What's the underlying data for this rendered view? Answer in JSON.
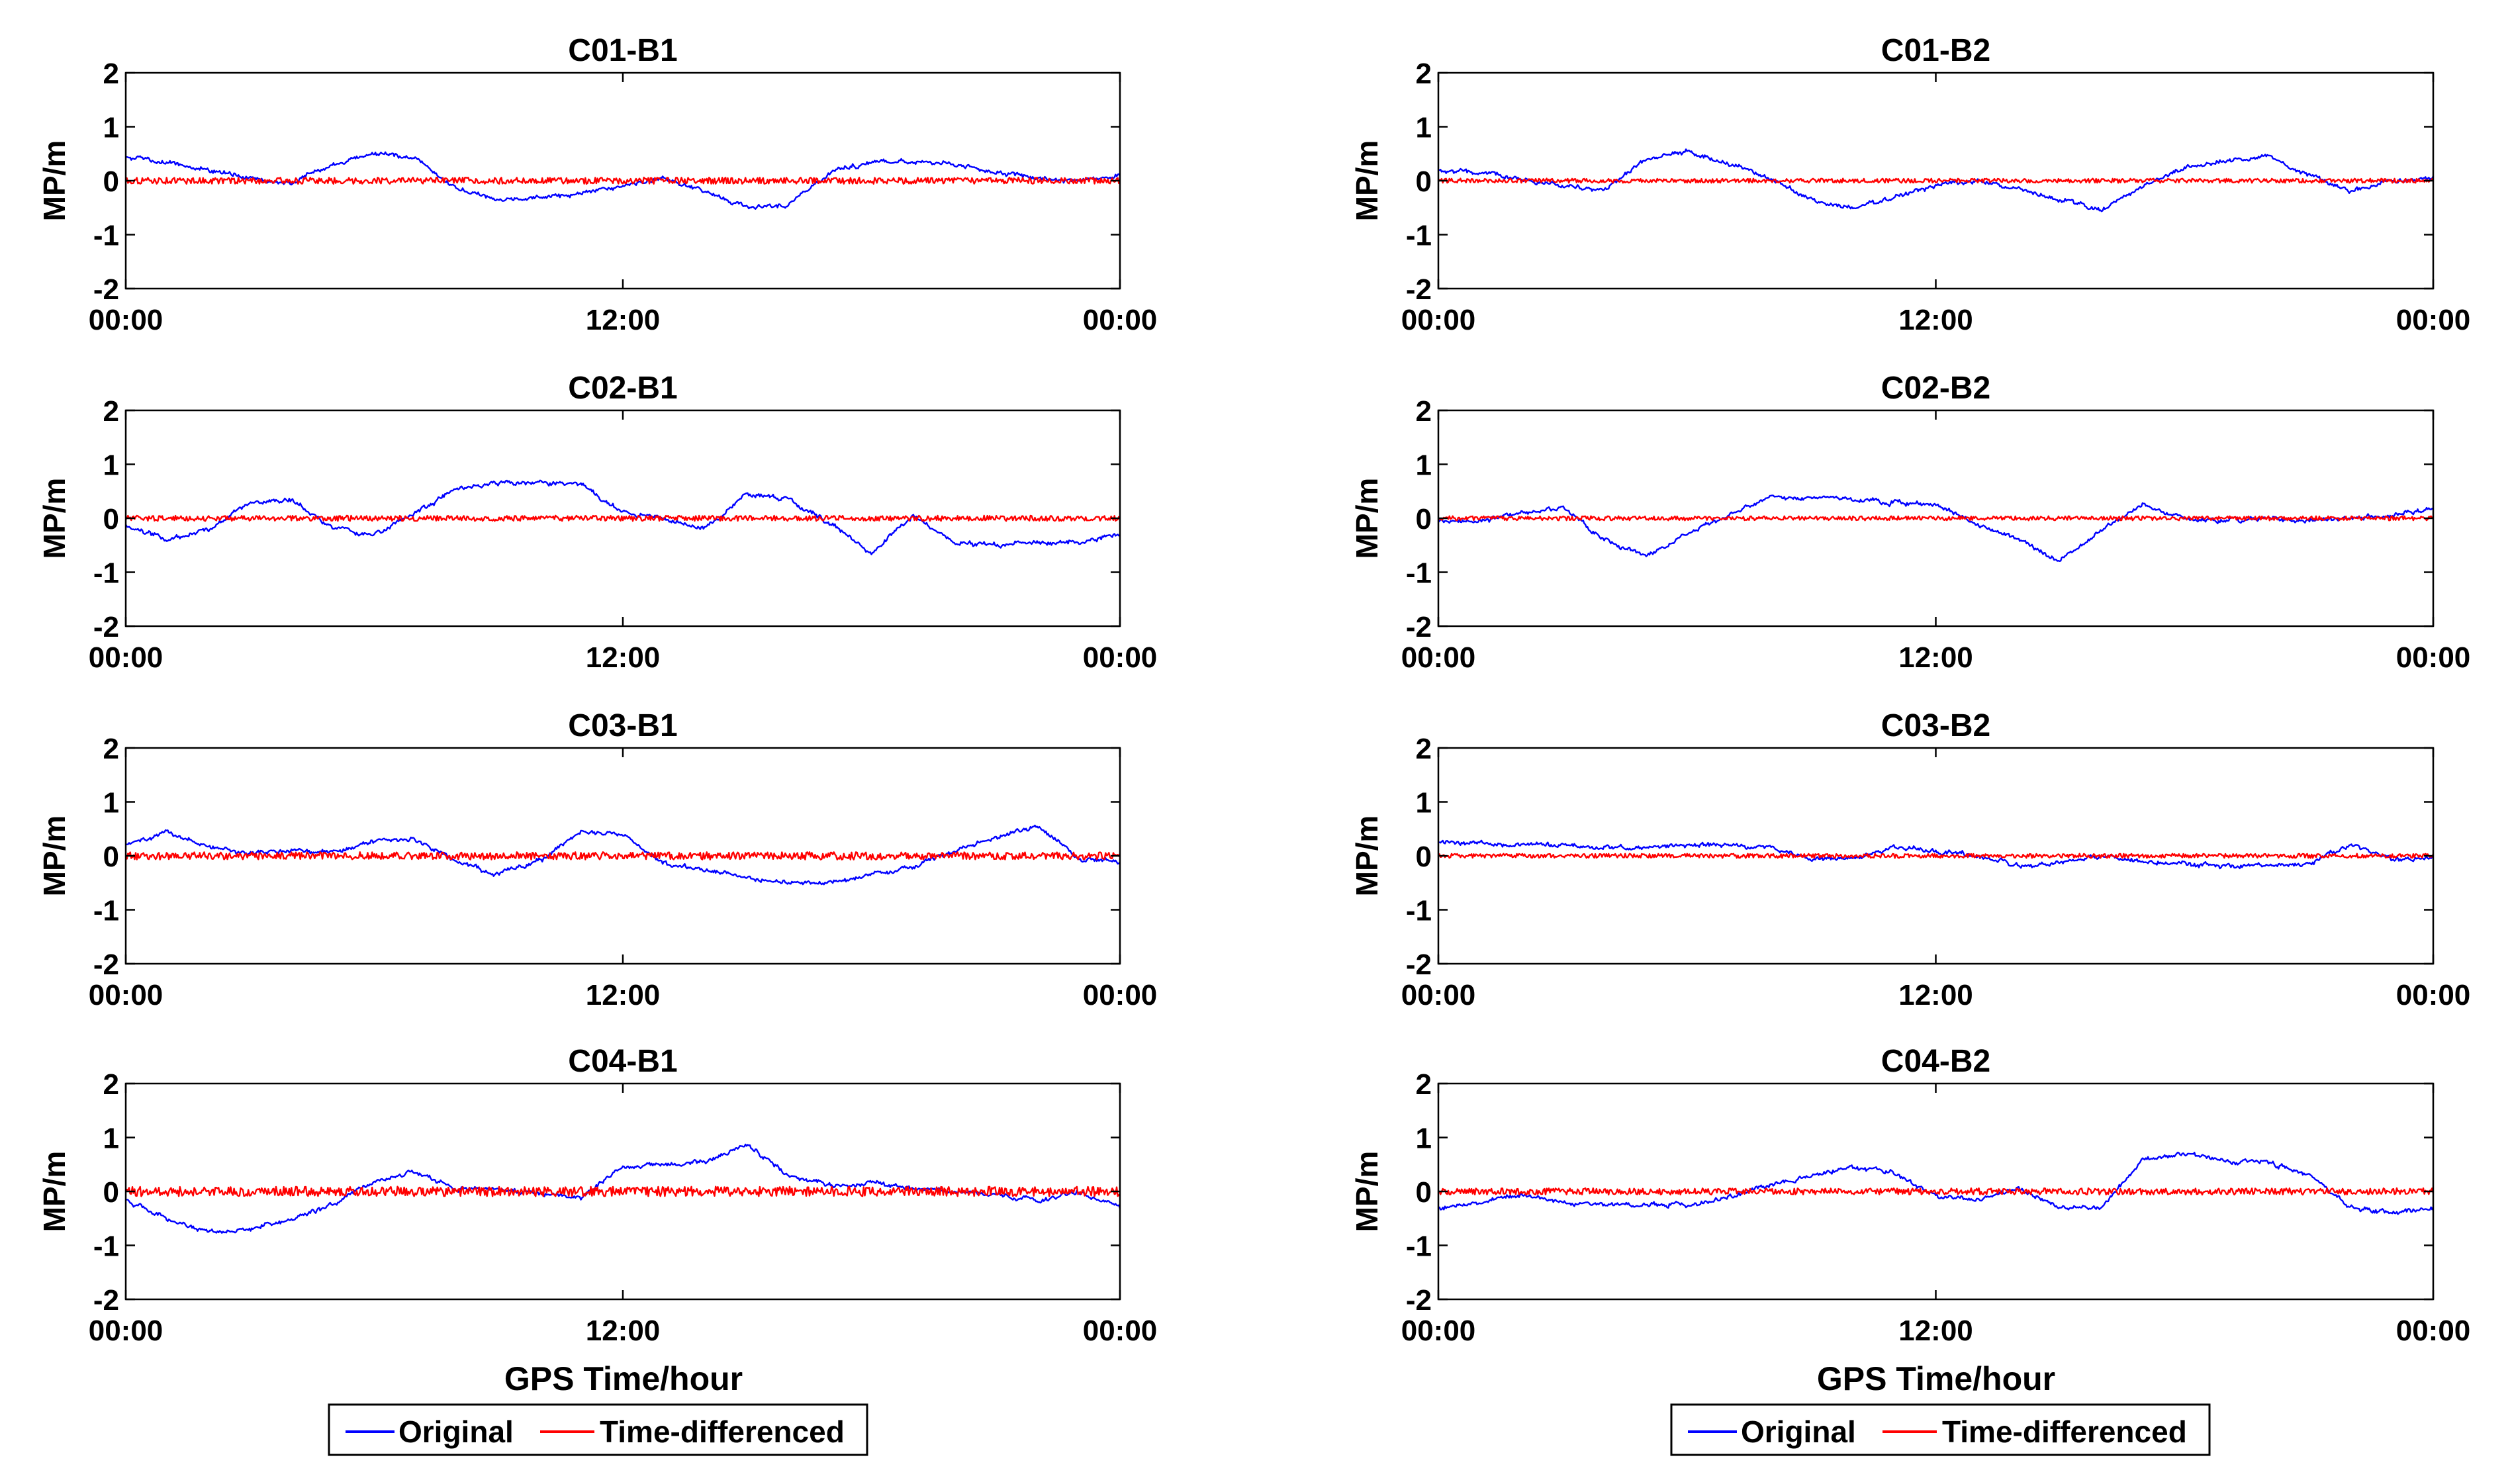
{
  "figure": {
    "shared_ylabel": "MP/m",
    "shared_xlabel": "GPS Time/hour",
    "x_ticks": [
      "00:00",
      "12:00",
      "00:00"
    ],
    "y_ticks": [
      "2",
      "1",
      "0",
      "-1",
      "-2"
    ],
    "legend": [
      "Original",
      "Time-differenced"
    ],
    "colors": {
      "Original": "#0000ff",
      "Time-differenced": "#ff0000"
    }
  },
  "chart_data": [
    {
      "type": "line",
      "title": "C01-B1",
      "xlabel": "",
      "ylabel": "MP/m",
      "xlim": [
        0,
        24
      ],
      "ylim": [
        -2,
        2
      ],
      "x_ticks": [
        "00:00",
        "12:00",
        "00:00"
      ],
      "series": [
        {
          "name": "Original",
          "color": "#0000ff",
          "x": [
            0,
            1,
            2,
            3,
            4,
            5,
            6,
            7,
            8,
            9,
            10,
            11,
            12,
            13,
            14,
            15,
            16,
            17,
            18,
            19,
            20,
            21,
            22,
            23,
            24
          ],
          "y": [
            0.45,
            0.35,
            0.2,
            0.05,
            -0.05,
            0.3,
            0.5,
            0.4,
            -0.15,
            -0.35,
            -0.3,
            -0.25,
            -0.1,
            0.05,
            -0.2,
            -0.5,
            -0.45,
            0.15,
            0.35,
            0.35,
            0.3,
            0.15,
            0.05,
            0.0,
            0.1
          ]
        },
        {
          "name": "Time-differenced",
          "color": "#ff0000",
          "x": [
            0,
            24
          ],
          "y": [
            0,
            0
          ],
          "noise": 0.06
        }
      ]
    },
    {
      "type": "line",
      "title": "C01-B2",
      "xlabel": "",
      "ylabel": "MP/m",
      "xlim": [
        0,
        24
      ],
      "ylim": [
        -2,
        2
      ],
      "x_ticks": [
        "00:00",
        "12:00",
        "00:00"
      ],
      "series": [
        {
          "name": "Original",
          "color": "#0000ff",
          "x": [
            0,
            1,
            2,
            3,
            4,
            5,
            6,
            7,
            8,
            9,
            10,
            11,
            12,
            13,
            14,
            15,
            16,
            17,
            18,
            19,
            20,
            21,
            22,
            23,
            24
          ],
          "y": [
            0.2,
            0.15,
            0.05,
            -0.1,
            -0.15,
            0.4,
            0.55,
            0.3,
            0.05,
            -0.35,
            -0.55,
            -0.3,
            -0.1,
            0.0,
            -0.15,
            -0.35,
            -0.55,
            -0.1,
            0.25,
            0.35,
            0.45,
            0.1,
            -0.2,
            0.0,
            0.05
          ]
        },
        {
          "name": "Time-differenced",
          "color": "#ff0000",
          "x": [
            0,
            24
          ],
          "y": [
            0,
            0
          ],
          "noise": 0.04
        }
      ]
    },
    {
      "type": "line",
      "title": "C02-B1",
      "xlabel": "",
      "ylabel": "MP/m",
      "xlim": [
        0,
        24
      ],
      "ylim": [
        -2,
        2
      ],
      "x_ticks": [
        "00:00",
        "12:00",
        "00:00"
      ],
      "series": [
        {
          "name": "Original",
          "color": "#0000ff",
          "x": [
            0,
            1,
            2,
            3,
            4,
            5,
            6,
            7,
            8,
            9,
            10,
            11,
            12,
            13,
            14,
            15,
            16,
            17,
            18,
            19,
            20,
            21,
            22,
            23,
            24
          ],
          "y": [
            -0.1,
            -0.4,
            -0.2,
            0.3,
            0.35,
            -0.2,
            -0.3,
            0.1,
            0.55,
            0.65,
            0.65,
            0.65,
            0.1,
            0.0,
            -0.2,
            0.45,
            0.35,
            -0.1,
            -0.65,
            0.05,
            -0.45,
            -0.5,
            -0.45,
            -0.45,
            -0.3
          ]
        },
        {
          "name": "Time-differenced",
          "color": "#ff0000",
          "x": [
            0,
            24
          ],
          "y": [
            0,
            0
          ],
          "noise": 0.05
        }
      ]
    },
    {
      "type": "line",
      "title": "C02-B2",
      "xlabel": "",
      "ylabel": "MP/m",
      "xlim": [
        0,
        24
      ],
      "ylim": [
        -2,
        2
      ],
      "x_ticks": [
        "00:00",
        "12:00",
        "00:00"
      ],
      "series": [
        {
          "name": "Original",
          "color": "#0000ff",
          "x": [
            0,
            1,
            2,
            3,
            4,
            5,
            6,
            7,
            8,
            9,
            10,
            11,
            12,
            13,
            14,
            15,
            16,
            17,
            18,
            19,
            20,
            21,
            22,
            23,
            24
          ],
          "y": [
            -0.05,
            -0.05,
            0.1,
            0.2,
            -0.4,
            -0.7,
            -0.3,
            0.05,
            0.4,
            0.4,
            0.35,
            0.3,
            0.25,
            -0.1,
            -0.4,
            -0.8,
            -0.2,
            0.25,
            0.0,
            -0.05,
            0.0,
            -0.05,
            0.0,
            0.05,
            0.2
          ]
        },
        {
          "name": "Time-differenced",
          "color": "#ff0000",
          "x": [
            0,
            24
          ],
          "y": [
            0,
            0
          ],
          "noise": 0.04
        }
      ]
    },
    {
      "type": "line",
      "title": "C03-B1",
      "xlabel": "",
      "ylabel": "MP/m",
      "xlim": [
        0,
        24
      ],
      "ylim": [
        -2,
        2
      ],
      "x_ticks": [
        "00:00",
        "12:00",
        "00:00"
      ],
      "series": [
        {
          "name": "Original",
          "color": "#0000ff",
          "x": [
            0,
            1,
            2,
            3,
            4,
            5,
            6,
            7,
            8,
            9,
            10,
            11,
            12,
            13,
            14,
            15,
            16,
            17,
            18,
            19,
            20,
            21,
            22,
            23,
            24
          ],
          "y": [
            0.2,
            0.45,
            0.15,
            0.05,
            0.1,
            0.05,
            0.3,
            0.3,
            -0.1,
            -0.35,
            -0.1,
            0.45,
            0.4,
            -0.15,
            -0.25,
            -0.4,
            -0.5,
            -0.5,
            -0.35,
            -0.2,
            0.1,
            0.35,
            0.55,
            -0.05,
            -0.1
          ]
        },
        {
          "name": "Time-differenced",
          "color": "#ff0000",
          "x": [
            0,
            24
          ],
          "y": [
            0,
            0
          ],
          "noise": 0.07
        }
      ]
    },
    {
      "type": "line",
      "title": "C03-B2",
      "xlabel": "",
      "ylabel": "MP/m",
      "xlim": [
        0,
        24
      ],
      "ylim": [
        -2,
        2
      ],
      "x_ticks": [
        "00:00",
        "12:00",
        "00:00"
      ],
      "series": [
        {
          "name": "Original",
          "color": "#0000ff",
          "x": [
            0,
            1,
            2,
            3,
            4,
            5,
            6,
            7,
            8,
            9,
            10,
            11,
            12,
            13,
            14,
            15,
            16,
            17,
            18,
            19,
            20,
            21,
            22,
            23,
            24
          ],
          "y": [
            0.25,
            0.25,
            0.2,
            0.2,
            0.15,
            0.15,
            0.2,
            0.2,
            0.15,
            -0.05,
            -0.05,
            0.15,
            0.1,
            0.0,
            -0.2,
            -0.15,
            0.0,
            -0.1,
            -0.15,
            -0.2,
            -0.2,
            -0.15,
            0.2,
            -0.05,
            -0.05
          ]
        },
        {
          "name": "Time-differenced",
          "color": "#ff0000",
          "x": [
            0,
            24
          ],
          "y": [
            0,
            0
          ],
          "noise": 0.04
        }
      ]
    },
    {
      "type": "line",
      "title": "C04-B1",
      "xlabel": "",
      "ylabel": "MP/m",
      "xlim": [
        0,
        24
      ],
      "ylim": [
        -2,
        2
      ],
      "x_ticks": [
        "00:00",
        "12:00",
        "00:00"
      ],
      "series": [
        {
          "name": "Original",
          "color": "#0000ff",
          "x": [
            0,
            1,
            2,
            3,
            4,
            5,
            6,
            7,
            8,
            9,
            10,
            11,
            12,
            13,
            14,
            15,
            16,
            17,
            18,
            19,
            20,
            21,
            22,
            23,
            24
          ],
          "y": [
            -0.15,
            -0.5,
            -0.75,
            -0.7,
            -0.5,
            -0.25,
            0.2,
            0.35,
            0.05,
            0.05,
            -0.05,
            -0.1,
            0.45,
            0.5,
            0.55,
            0.85,
            0.3,
            0.1,
            0.15,
            0.05,
            0.0,
            -0.05,
            -0.2,
            0.0,
            -0.3
          ]
        },
        {
          "name": "Time-differenced",
          "color": "#ff0000",
          "x": [
            0,
            24
          ],
          "y": [
            0,
            0
          ],
          "noise": 0.09
        }
      ]
    },
    {
      "type": "line",
      "title": "C04-B2",
      "xlabel": "",
      "ylabel": "MP/m",
      "xlim": [
        0,
        24
      ],
      "ylim": [
        -2,
        2
      ],
      "x_ticks": [
        "00:00",
        "12:00",
        "00:00"
      ],
      "series": [
        {
          "name": "Original",
          "color": "#0000ff",
          "x": [
            0,
            1,
            2,
            3,
            4,
            5,
            6,
            7,
            8,
            9,
            10,
            11,
            12,
            13,
            14,
            15,
            16,
            17,
            18,
            19,
            20,
            21,
            22,
            23,
            24
          ],
          "y": [
            -0.3,
            -0.2,
            -0.05,
            -0.2,
            -0.25,
            -0.25,
            -0.25,
            -0.1,
            0.1,
            0.3,
            0.45,
            0.35,
            -0.1,
            -0.15,
            0.05,
            -0.3,
            -0.3,
            0.6,
            0.7,
            0.55,
            0.55,
            0.3,
            -0.3,
            -0.4,
            -0.3
          ]
        },
        {
          "name": "Time-differenced",
          "color": "#ff0000",
          "x": [
            0,
            24
          ],
          "y": [
            0,
            0
          ],
          "noise": 0.06
        }
      ]
    }
  ]
}
